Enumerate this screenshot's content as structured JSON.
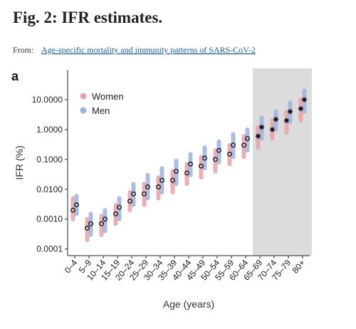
{
  "header": {
    "title": "Fig. 2: IFR estimates.",
    "from_label": "From:",
    "source_link": "Age-specific mortality and immunity patterns of SARS-CoV-2"
  },
  "panel_label": "a",
  "chart_data": {
    "type": "dotrange",
    "x_label": "Age (years)",
    "y_label": "IFR (%)",
    "categories": [
      "0–4",
      "5–9",
      "10–14",
      "15–19",
      "20–24",
      "25–29",
      "30–34",
      "35–39",
      "40–44",
      "45–49",
      "50–54",
      "55–59",
      "60–64",
      "65–69",
      "70–74",
      "75–79",
      "80+"
    ],
    "log_y": true,
    "ylim": [
      6e-05,
      100
    ],
    "yticks": [
      {
        "value": 10,
        "label": "10.0000"
      },
      {
        "value": 1,
        "label": "1.0000"
      },
      {
        "value": 0.1,
        "label": "0.1000"
      },
      {
        "value": 0.01,
        "label": "0.0100"
      },
      {
        "value": 0.001,
        "label": "0.0010"
      },
      {
        "value": 0.0001,
        "label": "0.0001"
      }
    ],
    "legend": "top-left",
    "series": [
      {
        "name": "Women",
        "color": "#e8a3a8",
        "values": [
          0.002,
          0.0005,
          0.0007,
          0.0015,
          0.004,
          0.007,
          0.012,
          0.02,
          0.035,
          0.06,
          0.1,
          0.15,
          0.3,
          0.6,
          1,
          2,
          5
        ],
        "low": [
          0.001,
          0.0002,
          0.0003,
          0.0007,
          0.002,
          0.003,
          0.005,
          0.008,
          0.015,
          0.025,
          0.04,
          0.07,
          0.12,
          0.25,
          0.5,
          0.8,
          2
        ],
        "high": [
          0.005,
          0.001,
          0.0013,
          0.003,
          0.008,
          0.015,
          0.025,
          0.04,
          0.07,
          0.12,
          0.2,
          0.3,
          0.6,
          1.2,
          2,
          4,
          10
        ]
      },
      {
        "name": "Men",
        "color": "#9fb3e0",
        "values": [
          0.003,
          0.0007,
          0.001,
          0.0025,
          0.007,
          0.012,
          0.02,
          0.04,
          0.07,
          0.11,
          0.2,
          0.3,
          0.5,
          1.2,
          2.2,
          4,
          10
        ],
        "low": [
          0.0015,
          0.0003,
          0.0004,
          0.001,
          0.003,
          0.005,
          0.008,
          0.015,
          0.03,
          0.05,
          0.08,
          0.12,
          0.2,
          0.5,
          1,
          1.8,
          4
        ],
        "high": [
          0.006,
          0.0015,
          0.002,
          0.005,
          0.015,
          0.03,
          0.05,
          0.09,
          0.15,
          0.25,
          0.4,
          0.7,
          1,
          2.5,
          4,
          8,
          20
        ]
      }
    ]
  }
}
